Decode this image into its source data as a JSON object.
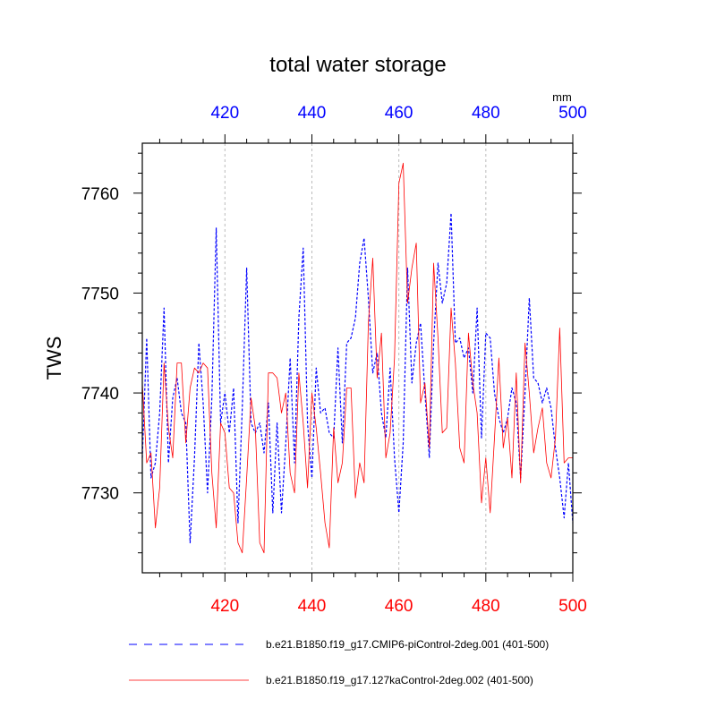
{
  "chart_data": {
    "type": "line",
    "title": "total water storage",
    "ylabel": "TWS",
    "xlabel": "",
    "units_label": "mm",
    "xlim": [
      401,
      500
    ],
    "ylim": [
      7722,
      7765
    ],
    "x_ticks_top": [
      420,
      440,
      460,
      480,
      500
    ],
    "x_ticks_bottom": [
      420,
      440,
      460,
      480,
      500
    ],
    "y_ticks": [
      7730,
      7740,
      7750,
      7760
    ],
    "grid": "vertical dashed at top x ticks",
    "x": [
      401,
      402,
      403,
      404,
      405,
      406,
      407,
      408,
      409,
      410,
      411,
      412,
      413,
      414,
      415,
      416,
      417,
      418,
      419,
      420,
      421,
      422,
      423,
      424,
      425,
      426,
      427,
      428,
      429,
      430,
      431,
      432,
      433,
      434,
      435,
      436,
      437,
      438,
      439,
      440,
      441,
      442,
      443,
      444,
      445,
      446,
      447,
      448,
      449,
      450,
      451,
      452,
      453,
      454,
      455,
      456,
      457,
      458,
      459,
      460,
      461,
      462,
      463,
      464,
      465,
      466,
      467,
      468,
      469,
      470,
      471,
      472,
      473,
      474,
      475,
      476,
      477,
      478,
      479,
      480,
      481,
      482,
      483,
      484,
      485,
      486,
      487,
      488,
      489,
      490,
      491,
      492,
      493,
      494,
      495,
      496,
      497,
      498,
      499,
      500
    ],
    "series": [
      {
        "name": "b.e21.B1850.f19_g17.CMIP6-piControl-2deg.001 (401-500)",
        "color": "#0000ff",
        "dash": "dashed",
        "values": [
          7733.5,
          7745.5,
          7731.5,
          7733.0,
          7738.0,
          7748.5,
          7733.0,
          7739.5,
          7741.5,
          7738.0,
          7737.0,
          7725.0,
          7733.5,
          7745.0,
          7739.0,
          7730.0,
          7739.5,
          7756.5,
          7737.0,
          7740.0,
          7736.0,
          7740.5,
          7727.0,
          7738.5,
          7752.5,
          7737.0,
          7736.0,
          7737.0,
          7734.0,
          7739.0,
          7728.0,
          7737.0,
          7728.0,
          7735.0,
          7743.5,
          7733.0,
          7747.5,
          7754.5,
          7737.0,
          7731.5,
          7742.5,
          7738.0,
          7738.5,
          7736.0,
          7735.5,
          7744.5,
          7735.0,
          7745.0,
          7745.5,
          7747.5,
          7753.0,
          7755.5,
          7749.5,
          7742.0,
          7744.0,
          7738.0,
          7735.5,
          7742.5,
          7733.5,
          7728.0,
          7735.0,
          7752.5,
          7741.0,
          7745.0,
          7747.0,
          7740.0,
          7733.5,
          7745.0,
          7753.0,
          7749.0,
          7751.0,
          7758.0,
          7745.0,
          7745.5,
          7743.5,
          7744.5,
          7740.0,
          7748.5,
          7735.5,
          7746.0,
          7745.5,
          7740.0,
          7737.5,
          7736.0,
          7737.5,
          7740.5,
          7739.0,
          7731.5,
          7740.0,
          7749.5,
          7741.5,
          7741.0,
          7739.0,
          7740.5,
          7738.5,
          7734.5,
          7731.5,
          7727.5,
          7733.0,
          7727.0
        ]
      },
      {
        "name": "b.e21.B1850.f19_g17.127kaControl-2deg.002 (401-500)",
        "color": "#ff0000",
        "dash": "solid",
        "values": [
          7741.0,
          7733.0,
          7734.0,
          7726.5,
          7730.5,
          7743.0,
          7736.5,
          7733.5,
          7743.0,
          7743.0,
          7735.0,
          7740.5,
          7742.5,
          7742.0,
          7743.0,
          7742.5,
          7732.0,
          7726.5,
          7737.0,
          7736.0,
          7730.5,
          7730.0,
          7725.0,
          7724.0,
          7731.5,
          7739.5,
          7736.5,
          7725.0,
          7724.0,
          7742.0,
          7742.0,
          7741.5,
          7738.0,
          7740.0,
          7732.0,
          7730.0,
          7742.0,
          7737.0,
          7730.5,
          7740.0,
          7736.5,
          7732.0,
          7727.0,
          7724.5,
          7736.5,
          7731.0,
          7733.0,
          7740.5,
          7740.5,
          7729.5,
          7733.0,
          7731.0,
          7747.0,
          7753.5,
          7741.5,
          7746.0,
          7733.5,
          7736.0,
          7743.5,
          7761.0,
          7763.0,
          7749.0,
          7752.5,
          7755.0,
          7739.0,
          7741.0,
          7734.5,
          7753.0,
          7745.5,
          7736.0,
          7736.5,
          7748.5,
          7743.0,
          7734.5,
          7733.0,
          7746.0,
          7741.0,
          7738.0,
          7729.0,
          7733.5,
          7728.0,
          7735.5,
          7743.5,
          7734.5,
          7737.5,
          7731.5,
          7742.0,
          7731.0,
          7745.0,
          7740.0,
          7734.0,
          7736.5,
          7738.5,
          7733.0,
          7731.5,
          7735.5,
          7746.5,
          7733.0,
          7733.5,
          7733.5
        ]
      }
    ],
    "legend_position": "bottom"
  }
}
